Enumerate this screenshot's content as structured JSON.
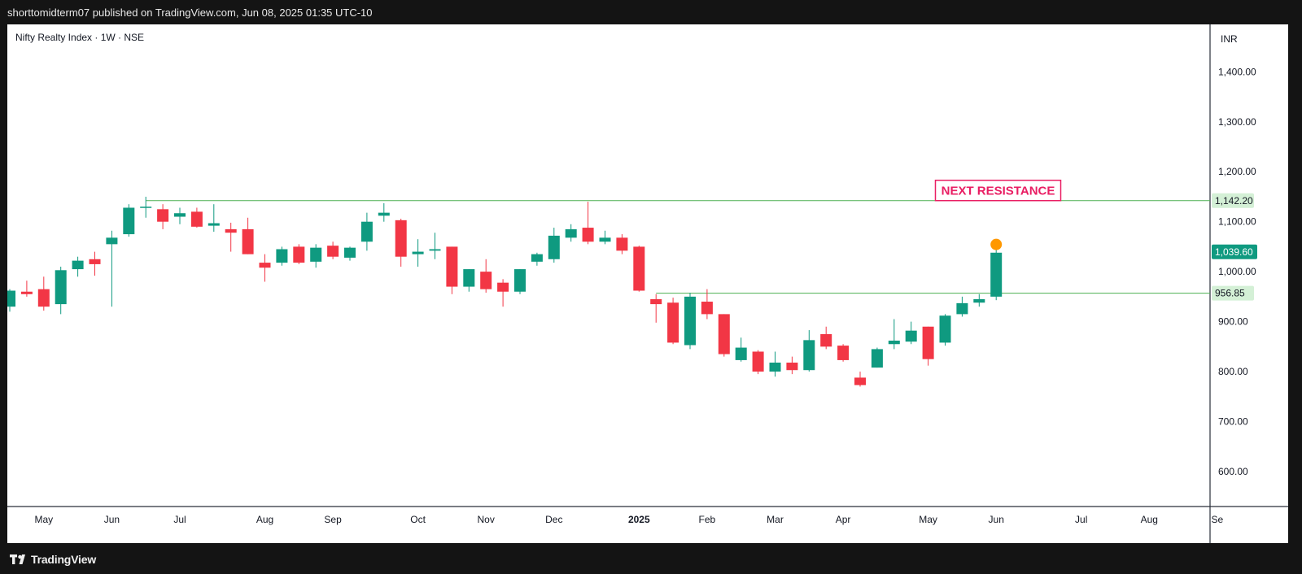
{
  "header": {
    "published_text": "shorttomidterm07 published on TradingView.com, Jun 08, 2025 01:35 UTC-10"
  },
  "footer": {
    "brand": "TradingView",
    "logo_icon": "tradingview-logo-icon"
  },
  "colors": {
    "up": "#26a69a",
    "up_body": "#0f9a80",
    "down": "#f23645",
    "line": "#4caf50",
    "annotation": "#e91e63",
    "marker": "#ff9800"
  },
  "chart_data": {
    "type": "candlestick",
    "title": "Nifty Realty Index · 1W · NSE",
    "currency": "INR",
    "y_range": [
      530,
      1490
    ],
    "y_ticks": [
      {
        "value": 1400,
        "label": "1,400.00"
      },
      {
        "value": 1300,
        "label": "1,300.00"
      },
      {
        "value": 1200,
        "label": "1,200.00"
      },
      {
        "value": 1100,
        "label": "1,100.00"
      },
      {
        "value": 1000,
        "label": "1,000.00"
      },
      {
        "value": 900,
        "label": "900.00"
      },
      {
        "value": 800,
        "label": "800.00"
      },
      {
        "value": 700,
        "label": "700.00"
      },
      {
        "value": 600,
        "label": "600.00"
      }
    ],
    "x_ticks": [
      {
        "index": 2,
        "label": "May",
        "bold": false
      },
      {
        "index": 6,
        "label": "Jun",
        "bold": false
      },
      {
        "index": 10,
        "label": "Jul",
        "bold": false
      },
      {
        "index": 15,
        "label": "Aug",
        "bold": false
      },
      {
        "index": 19,
        "label": "Sep",
        "bold": false
      },
      {
        "index": 24,
        "label": "Oct",
        "bold": false
      },
      {
        "index": 28,
        "label": "Nov",
        "bold": false
      },
      {
        "index": 32,
        "label": "Dec",
        "bold": false
      },
      {
        "index": 37,
        "label": "2025",
        "bold": true
      },
      {
        "index": 41,
        "label": "Feb",
        "bold": false
      },
      {
        "index": 45,
        "label": "Mar",
        "bold": false
      },
      {
        "index": 49,
        "label": "Apr",
        "bold": false
      },
      {
        "index": 54,
        "label": "May",
        "bold": false
      },
      {
        "index": 58,
        "label": "Jun",
        "bold": false
      },
      {
        "index": 63,
        "label": "Jul",
        "bold": false
      },
      {
        "index": 67,
        "label": "Aug",
        "bold": false
      },
      {
        "index": 71,
        "label": "Se",
        "bold": false
      }
    ],
    "candles": [
      {
        "o": 930,
        "h": 965,
        "l": 920,
        "c": 962
      },
      {
        "o": 960,
        "h": 982,
        "l": 950,
        "c": 955
      },
      {
        "o": 965,
        "h": 990,
        "l": 922,
        "c": 930
      },
      {
        "o": 935,
        "h": 1010,
        "l": 915,
        "c": 1003
      },
      {
        "o": 1005,
        "h": 1030,
        "l": 990,
        "c": 1022
      },
      {
        "o": 1025,
        "h": 1040,
        "l": 992,
        "c": 1015
      },
      {
        "o": 1055,
        "h": 1082,
        "l": 930,
        "c": 1068
      },
      {
        "o": 1075,
        "h": 1135,
        "l": 1070,
        "c": 1128
      },
      {
        "o": 1128,
        "h": 1150,
        "l": 1108,
        "c": 1130
      },
      {
        "o": 1125,
        "h": 1135,
        "l": 1085,
        "c": 1100
      },
      {
        "o": 1110,
        "h": 1128,
        "l": 1095,
        "c": 1117
      },
      {
        "o": 1120,
        "h": 1128,
        "l": 1088,
        "c": 1090
      },
      {
        "o": 1092,
        "h": 1135,
        "l": 1080,
        "c": 1097
      },
      {
        "o": 1085,
        "h": 1098,
        "l": 1040,
        "c": 1078
      },
      {
        "o": 1085,
        "h": 1108,
        "l": 1035,
        "c": 1035
      },
      {
        "o": 1018,
        "h": 1035,
        "l": 980,
        "c": 1008
      },
      {
        "o": 1018,
        "h": 1050,
        "l": 1012,
        "c": 1045
      },
      {
        "o": 1050,
        "h": 1055,
        "l": 1015,
        "c": 1018
      },
      {
        "o": 1020,
        "h": 1055,
        "l": 1008,
        "c": 1048
      },
      {
        "o": 1052,
        "h": 1060,
        "l": 1025,
        "c": 1030
      },
      {
        "o": 1028,
        "h": 1050,
        "l": 1022,
        "c": 1048
      },
      {
        "o": 1060,
        "h": 1118,
        "l": 1042,
        "c": 1100
      },
      {
        "o": 1112,
        "h": 1137,
        "l": 1100,
        "c": 1118
      },
      {
        "o": 1103,
        "h": 1106,
        "l": 1010,
        "c": 1030
      },
      {
        "o": 1035,
        "h": 1065,
        "l": 1010,
        "c": 1040
      },
      {
        "o": 1042,
        "h": 1078,
        "l": 1025,
        "c": 1045
      },
      {
        "o": 1050,
        "h": 1050,
        "l": 955,
        "c": 970
      },
      {
        "o": 970,
        "h": 1005,
        "l": 960,
        "c": 1005
      },
      {
        "o": 1000,
        "h": 1025,
        "l": 958,
        "c": 965
      },
      {
        "o": 978,
        "h": 985,
        "l": 930,
        "c": 960
      },
      {
        "o": 960,
        "h": 1005,
        "l": 955,
        "c": 1005
      },
      {
        "o": 1020,
        "h": 1038,
        "l": 1012,
        "c": 1035
      },
      {
        "o": 1025,
        "h": 1088,
        "l": 1018,
        "c": 1072
      },
      {
        "o": 1068,
        "h": 1095,
        "l": 1060,
        "c": 1085
      },
      {
        "o": 1088,
        "h": 1140,
        "l": 1055,
        "c": 1060
      },
      {
        "o": 1060,
        "h": 1082,
        "l": 1055,
        "c": 1068
      },
      {
        "o": 1068,
        "h": 1075,
        "l": 1035,
        "c": 1042
      },
      {
        "o": 1050,
        "h": 1052,
        "l": 960,
        "c": 962
      },
      {
        "o": 945,
        "h": 955,
        "l": 898,
        "c": 935
      },
      {
        "o": 938,
        "h": 948,
        "l": 855,
        "c": 858
      },
      {
        "o": 853,
        "h": 958,
        "l": 845,
        "c": 950
      },
      {
        "o": 940,
        "h": 965,
        "l": 905,
        "c": 915
      },
      {
        "o": 915,
        "h": 915,
        "l": 830,
        "c": 835
      },
      {
        "o": 823,
        "h": 868,
        "l": 820,
        "c": 848
      },
      {
        "o": 840,
        "h": 843,
        "l": 795,
        "c": 800
      },
      {
        "o": 800,
        "h": 840,
        "l": 790,
        "c": 818
      },
      {
        "o": 818,
        "h": 830,
        "l": 795,
        "c": 803
      },
      {
        "o": 803,
        "h": 883,
        "l": 800,
        "c": 863
      },
      {
        "o": 875,
        "h": 890,
        "l": 845,
        "c": 850
      },
      {
        "o": 852,
        "h": 855,
        "l": 820,
        "c": 823
      },
      {
        "o": 788,
        "h": 800,
        "l": 770,
        "c": 773
      },
      {
        "o": 808,
        "h": 848,
        "l": 808,
        "c": 845
      },
      {
        "o": 855,
        "h": 905,
        "l": 845,
        "c": 862
      },
      {
        "o": 860,
        "h": 900,
        "l": 855,
        "c": 882
      },
      {
        "o": 890,
        "h": 890,
        "l": 812,
        "c": 825
      },
      {
        "o": 858,
        "h": 915,
        "l": 852,
        "c": 912
      },
      {
        "o": 915,
        "h": 950,
        "l": 910,
        "c": 937
      },
      {
        "o": 938,
        "h": 955,
        "l": 930,
        "c": 945
      },
      {
        "o": 950,
        "h": 1045,
        "l": 943,
        "c": 1038
      }
    ],
    "lines": [
      {
        "name": "resistance",
        "value": 1142.2,
        "start_index": 8,
        "label": "1,142.20"
      },
      {
        "name": "breakout",
        "value": 956.85,
        "start_index": 38,
        "label": "956.85"
      }
    ],
    "last_price": {
      "value": 1039.6,
      "label": "1,039.60"
    },
    "annotation": {
      "text": "NEXT RESISTANCE",
      "anchor_index": 55,
      "value": 1165
    },
    "marker": {
      "index": 58,
      "value": 1048
    }
  }
}
